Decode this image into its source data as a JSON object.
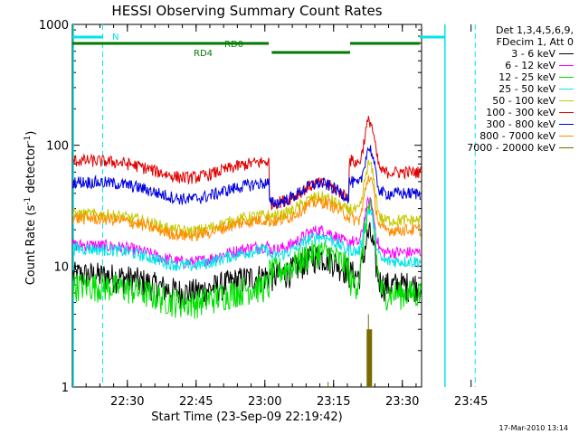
{
  "chart_data": {
    "type": "line",
    "title": "HESSI Observing Summary Count Rates",
    "xlabel": "Start Time (23-Sep-09 22:19:42)",
    "ylabel_main": "Count Rate (s",
    "ylabel_sup1": "-1",
    "ylabel_mid": " detector",
    "ylabel_sup2": "-1",
    "ylabel_end": ")",
    "x_range_minutes": [
      22.3,
      23.57
    ],
    "x_ticks": [
      {
        "label": "22:30",
        "t": 22.5
      },
      {
        "label": "22:45",
        "t": 22.75
      },
      {
        "label": "23:00",
        "t": 23.0
      },
      {
        "label": "23:15",
        "t": 23.25
      },
      {
        "label": "23:30",
        "t": 23.5
      },
      {
        "label": "23:45",
        "t": 23.75
      }
    ],
    "y_scale": "log",
    "ylim": [
      1,
      1000
    ],
    "y_ticks": [
      {
        "label": "1",
        "v": 1
      },
      {
        "label": "10",
        "v": 10
      },
      {
        "label": "100",
        "v": 100
      },
      {
        "label": "1000",
        "v": 1000
      }
    ],
    "legend_header": [
      "Det 1,3,4,5,6,9,",
      "FDecim 1, Att 0"
    ],
    "series": [
      {
        "name": "3 - 6 keV",
        "color": "#000000",
        "key": "s1"
      },
      {
        "name": "6 - 12 keV",
        "color": "#ff00ff",
        "key": "s2"
      },
      {
        "name": "12 - 25 keV",
        "color": "#00e000",
        "key": "s3"
      },
      {
        "name": "25 - 50 keV",
        "color": "#00e5e5",
        "key": "s4"
      },
      {
        "name": "50 - 100 keV",
        "color": "#c8c800",
        "key": "s5"
      },
      {
        "name": "100 - 300 keV",
        "color": "#e00000",
        "key": "s6"
      },
      {
        "name": "300 - 800 keV",
        "color": "#0000e0",
        "key": "s7"
      },
      {
        "name": "800 - 7000 keV",
        "color": "#ff8c00",
        "key": "s8"
      },
      {
        "name": "7000 - 20000 keV",
        "color": "#7a6a00",
        "key": "s9"
      }
    ],
    "levels": {
      "s1": {
        "pre": 8.5,
        "mid": 11,
        "post": 7
      },
      "s2": {
        "pre": 15,
        "mid": 18,
        "post": 13
      },
      "s3": {
        "pre": 7,
        "mid": 12,
        "post": 6
      },
      "s4": {
        "pre": 14,
        "mid": 16,
        "post": 11
      },
      "s5": {
        "pre": 27,
        "mid": 34,
        "post": 24
      },
      "s6": {
        "pre": 75,
        "mid": 44,
        "post": 60
      },
      "s7": {
        "pre": 50,
        "mid": 44,
        "post": 40
      },
      "s8": {
        "pre": 25,
        "mid": 31,
        "post": 20
      },
      "s9": {
        "pre": 0,
        "mid": 0,
        "post": 0
      }
    },
    "flare": {
      "peak_t": 23.38,
      "s6_peak": 160,
      "s7_peak": 95,
      "s5_peak": 70,
      "s8_peak": 55,
      "s3_peak": 30,
      "s9_peak": 3
    }
  },
  "annotations": {
    "n_label": "N",
    "rd0_label": "RD0",
    "rd4_label": "RD4"
  },
  "footer": {
    "timestamp": "17-Mar-2010 13:14"
  },
  "colors": {
    "cyan": "#00e5e5",
    "darkgreen": "#007a00",
    "frame": "#000000"
  }
}
